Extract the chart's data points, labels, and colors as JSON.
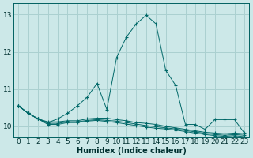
{
  "xlabel": "Humidex (Indice chaleur)",
  "bg_color": "#cce8e8",
  "grid_color": "#aad0d0",
  "line_color": "#006868",
  "xlim": [
    -0.5,
    23.5
  ],
  "ylim": [
    9.7,
    13.3
  ],
  "yticks": [
    10,
    11,
    12,
    13
  ],
  "xticks": [
    0,
    1,
    2,
    3,
    4,
    5,
    6,
    7,
    8,
    9,
    10,
    11,
    12,
    13,
    14,
    15,
    16,
    17,
    18,
    19,
    20,
    21,
    22,
    23
  ],
  "series": [
    [
      10.55,
      10.35,
      10.2,
      10.1,
      10.2,
      10.35,
      10.55,
      10.78,
      11.15,
      10.45,
      11.85,
      12.4,
      12.75,
      12.98,
      12.75,
      11.5,
      11.1,
      10.05,
      10.05,
      9.92,
      10.18,
      10.18,
      10.18,
      9.82
    ],
    [
      10.55,
      10.35,
      10.2,
      10.12,
      10.12,
      10.15,
      10.15,
      10.2,
      10.22,
      10.22,
      10.18,
      10.15,
      10.1,
      10.08,
      10.05,
      10.0,
      9.96,
      9.92,
      9.88,
      9.84,
      9.82,
      9.8,
      9.82,
      9.8
    ],
    [
      10.55,
      10.35,
      10.2,
      10.08,
      10.08,
      10.12,
      10.12,
      10.16,
      10.18,
      10.16,
      10.14,
      10.1,
      10.06,
      10.02,
      9.99,
      9.96,
      9.93,
      9.89,
      9.85,
      9.81,
      9.78,
      9.76,
      9.78,
      9.76
    ],
    [
      10.55,
      10.35,
      10.2,
      10.05,
      10.05,
      10.1,
      10.1,
      10.14,
      10.16,
      10.13,
      10.1,
      10.06,
      10.02,
      9.98,
      9.95,
      9.93,
      9.9,
      9.86,
      9.82,
      9.78,
      9.75,
      9.73,
      9.75,
      9.72
    ]
  ]
}
